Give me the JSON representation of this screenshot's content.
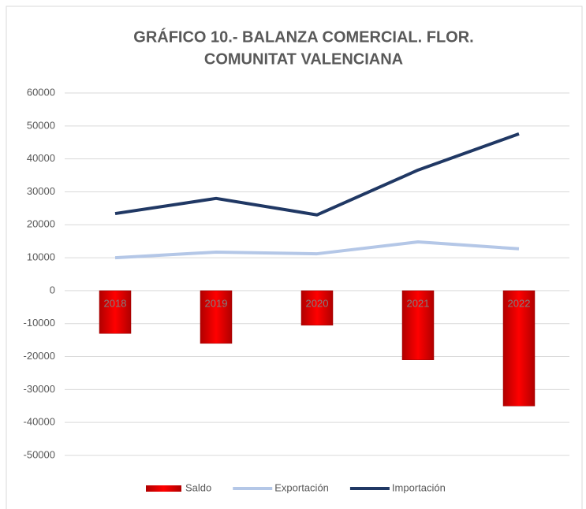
{
  "chart_data": {
    "type": "combo",
    "title": [
      "GRÁFICO 10.- BALANZA COMERCIAL. FLOR.",
      "COMUNITAT VALENCIANA"
    ],
    "categories": [
      "2018",
      "2019",
      "2020",
      "2021",
      "2022"
    ],
    "series": [
      {
        "name": "Saldo",
        "type": "bar",
        "color": "#ff0000",
        "values": [
          -13000,
          -16000,
          -10500,
          -21000,
          -35000
        ]
      },
      {
        "name": "Exportación",
        "type": "line",
        "color": "#b4c7e7",
        "values": [
          10000,
          11700,
          11200,
          14800,
          12700
        ]
      },
      {
        "name": "Importación",
        "type": "line",
        "color": "#203864",
        "values": [
          23400,
          28000,
          23000,
          36600,
          47600
        ]
      }
    ],
    "ylim": [
      -50000,
      60000
    ],
    "yticks": [
      -50000,
      -40000,
      -30000,
      -20000,
      -10000,
      0,
      10000,
      20000,
      30000,
      40000,
      50000,
      60000
    ],
    "grid": true,
    "legend": "bottom"
  }
}
